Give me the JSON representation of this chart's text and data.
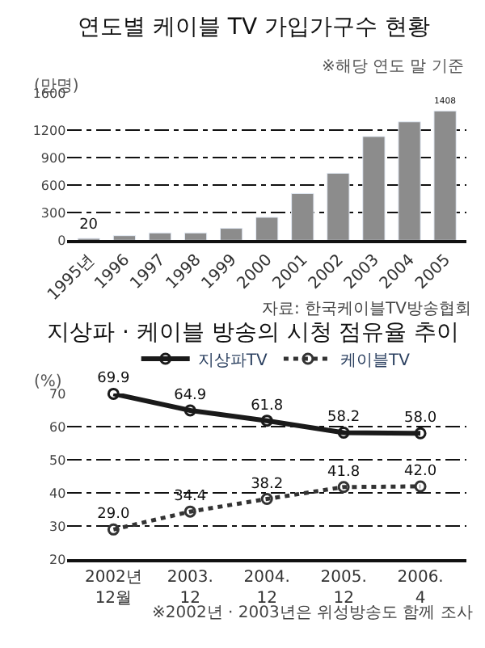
{
  "chart_data": [
    {
      "type": "bar",
      "title": "연도별 케이블 TV 가입가구수 현황",
      "subtitle": "※해당 연도 말 기준",
      "ylabel": "(만명)",
      "categories": [
        "1995년",
        "1996",
        "1997",
        "1998",
        "1999",
        "2000",
        "2001",
        "2002",
        "2003",
        "2004",
        "2005"
      ],
      "values": [
        20,
        50,
        80,
        80,
        130,
        250,
        510,
        730,
        1130,
        1290,
        1408
      ],
      "value_labels": [
        "20",
        null,
        null,
        null,
        null,
        null,
        null,
        null,
        null,
        null,
        "1408"
      ],
      "color": "#8c8c8c",
      "ylim": [
        0,
        1600
      ],
      "yticks": [
        0,
        300,
        600,
        900,
        1200,
        1600
      ],
      "grid": "y",
      "legend": false,
      "annotations": [
        "자료: 한국케이블TV방송협회"
      ]
    },
    {
      "type": "line",
      "title": "지상파 · 케이블 방송의 시청 점유율 추이",
      "ylabel": "(%)",
      "categories": [
        "2002년 12월",
        "2003. 12",
        "2004. 12",
        "2005. 12",
        "2006. 4"
      ],
      "series": [
        {
          "name": "지상파TV",
          "color": "#1a1a1a",
          "line_style": "solid",
          "values": [
            69.9,
            64.9,
            61.8,
            58.2,
            58.0
          ],
          "value_labels": [
            "69.9",
            "64.9",
            "61.8",
            "58.2",
            "58.0"
          ]
        },
        {
          "name": "케이블TV",
          "color": "#333333",
          "line_style": "dotted",
          "values": [
            29.0,
            34.4,
            38.2,
            41.8,
            42.0
          ],
          "value_labels": [
            "29.0",
            "34.4",
            "38.2",
            "41.8",
            "42.0"
          ]
        }
      ],
      "marker": "circle",
      "ylim": [
        20,
        70
      ],
      "yticks": [
        20,
        30,
        40,
        50,
        60,
        70
      ],
      "grid": "y",
      "legend": "top",
      "annotations": [
        "※2002년 · 2003년은 위성방송도 함께 조사"
      ]
    }
  ]
}
